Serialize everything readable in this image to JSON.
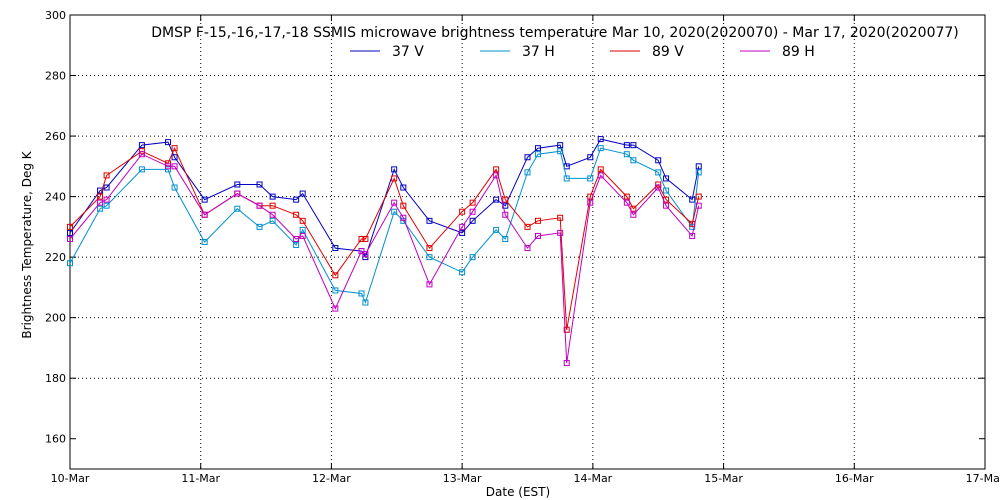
{
  "chart_data": {
    "type": "line",
    "title": "DMSP F-15,-16,-17,-18 SSMIS microwave brightness temperature Mar 10, 2020(2020070) - Mar 17, 2020(2020077)",
    "xlabel": "Date (EST)",
    "ylabel": "Brightness Temperature, Deg K",
    "xlim": [
      0,
      7
    ],
    "ylim": [
      150,
      300
    ],
    "x_start_date": "2020-03-10",
    "x_ticks": [
      {
        "x": 0,
        "label": "10-Mar"
      },
      {
        "x": 1,
        "label": "11-Mar"
      },
      {
        "x": 2,
        "label": "12-Mar"
      },
      {
        "x": 3,
        "label": "13-Mar"
      },
      {
        "x": 4,
        "label": "14-Mar"
      },
      {
        "x": 5,
        "label": "15-Mar"
      },
      {
        "x": 6,
        "label": "16-Mar"
      },
      {
        "x": 7,
        "label": "17-Mar"
      }
    ],
    "y_ticks": [
      160,
      180,
      200,
      220,
      240,
      260,
      280,
      300
    ],
    "grid": true,
    "legend_position": "top",
    "series": [
      {
        "name": "37 V",
        "color": "#0000c0",
        "x": [
          0.0,
          0.23,
          0.28,
          0.55,
          0.75,
          0.8,
          1.03,
          1.28,
          1.45,
          1.55,
          1.73,
          1.78,
          2.03,
          2.23,
          2.26,
          2.48,
          2.55,
          2.75,
          3.0,
          3.08,
          3.26,
          3.33,
          3.5,
          3.58,
          3.75,
          3.8,
          3.98,
          4.06,
          4.26,
          4.31,
          4.5,
          4.56,
          4.76,
          4.81
        ],
        "y": [
          228,
          242,
          243,
          257,
          258,
          253,
          239,
          244,
          244,
          240,
          239,
          241,
          223,
          222,
          220,
          249,
          243,
          232,
          228,
          232,
          239,
          237,
          253,
          256,
          257,
          250,
          253,
          259,
          257,
          257,
          252,
          246,
          239,
          250
        ]
      },
      {
        "name": "37 H",
        "color": "#0090d0",
        "x": [
          0.0,
          0.23,
          0.28,
          0.55,
          0.75,
          0.8,
          1.03,
          1.28,
          1.45,
          1.55,
          1.73,
          1.78,
          2.03,
          2.23,
          2.26,
          2.48,
          2.55,
          2.75,
          3.0,
          3.08,
          3.26,
          3.33,
          3.5,
          3.58,
          3.75,
          3.8,
          3.98,
          4.06,
          4.26,
          4.31,
          4.5,
          4.56,
          4.76,
          4.81
        ],
        "y": [
          218,
          236,
          237,
          249,
          249,
          243,
          225,
          236,
          230,
          232,
          224,
          229,
          209,
          208,
          205,
          235,
          232,
          220,
          215,
          220,
          229,
          226,
          248,
          254,
          255,
          246,
          246,
          256,
          254,
          252,
          248,
          242,
          230,
          248
        ]
      },
      {
        "name": "89 V",
        "color": "#e00000",
        "x": [
          0.0,
          0.23,
          0.28,
          0.55,
          0.75,
          0.8,
          1.03,
          1.28,
          1.45,
          1.55,
          1.73,
          1.78,
          2.03,
          2.23,
          2.26,
          2.48,
          2.55,
          2.75,
          3.0,
          3.08,
          3.26,
          3.33,
          3.5,
          3.58,
          3.75,
          3.8,
          3.98,
          4.06,
          4.26,
          4.31,
          4.5,
          4.56,
          4.76,
          4.81
        ],
        "y": [
          230,
          240,
          247,
          255,
          251,
          256,
          234,
          241,
          237,
          237,
          234,
          232,
          214,
          226,
          226,
          246,
          237,
          223,
          235,
          238,
          249,
          239,
          230,
          232,
          233,
          196,
          240,
          249,
          240,
          236,
          244,
          239,
          231,
          240
        ]
      },
      {
        "name": "89 H",
        "color": "#c000c0",
        "x": [
          0.0,
          0.23,
          0.28,
          0.55,
          0.75,
          0.8,
          1.03,
          1.28,
          1.45,
          1.55,
          1.73,
          1.78,
          2.03,
          2.23,
          2.26,
          2.48,
          2.55,
          2.75,
          3.0,
          3.08,
          3.26,
          3.33,
          3.5,
          3.58,
          3.75,
          3.8,
          3.98,
          4.06,
          4.26,
          4.31,
          4.5,
          4.56,
          4.76,
          4.81
        ],
        "y": [
          226,
          238,
          239,
          254,
          250,
          250,
          234,
          241,
          237,
          234,
          226,
          227,
          203,
          222,
          221,
          238,
          233,
          211,
          230,
          235,
          247,
          234,
          223,
          227,
          228,
          185,
          238,
          247,
          238,
          234,
          243,
          237,
          227,
          237
        ]
      }
    ]
  }
}
